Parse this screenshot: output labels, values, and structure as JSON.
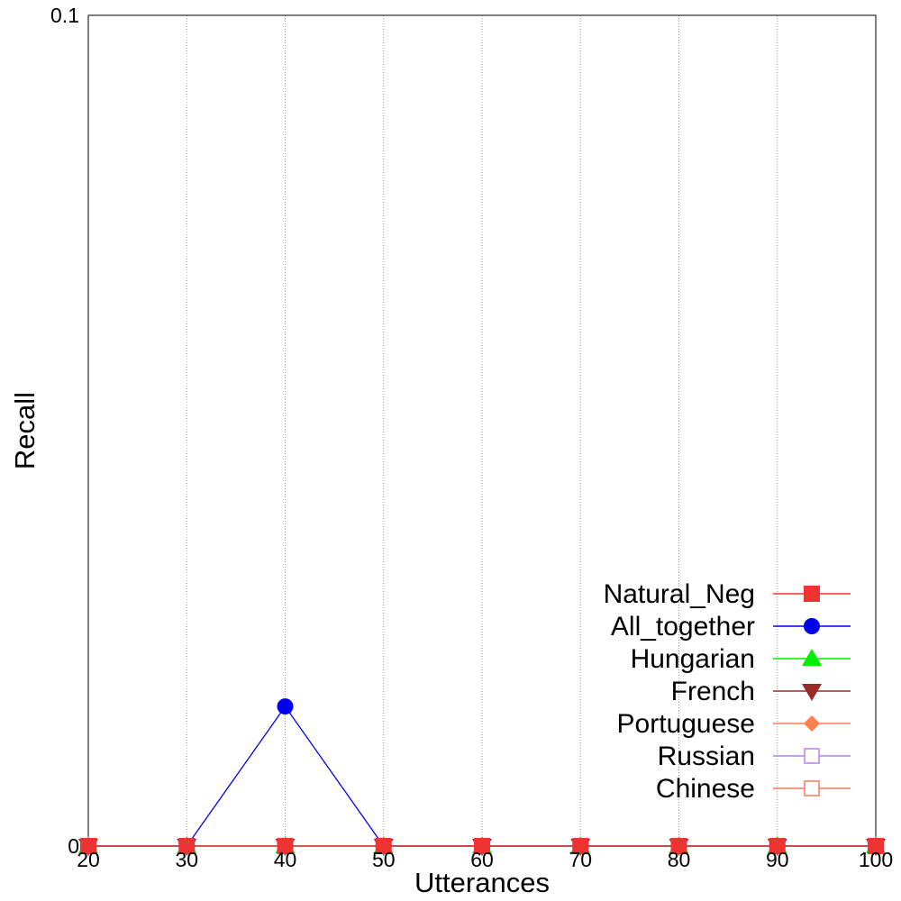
{
  "chart_data": {
    "type": "line",
    "title": "",
    "xlabel": "Utterances",
    "ylabel": "Recall",
    "x": [
      20,
      30,
      40,
      50,
      60,
      70,
      80,
      90,
      100
    ],
    "xlim": [
      20,
      100
    ],
    "ylim": [
      0,
      0.1
    ],
    "x_ticks": [
      "20",
      "30",
      "40",
      "50",
      "60",
      "70",
      "80",
      "90",
      "100"
    ],
    "y_ticks": [
      "0",
      "0.1"
    ],
    "grid": "vertical dotted",
    "legend_position": "bottom-right",
    "series": [
      {
        "name": "Natural_Neg",
        "color": "#ee3333",
        "marker": "square-filled",
        "values": [
          0,
          0,
          0,
          0,
          0,
          0,
          0,
          0,
          0
        ]
      },
      {
        "name": "All_together",
        "color": "#0000ee",
        "marker": "circle-filled",
        "values": [
          0,
          0,
          0.0168,
          0,
          0,
          0,
          0,
          0,
          0
        ]
      },
      {
        "name": "Hungarian",
        "color": "#00ee00",
        "marker": "triangle-up-filled",
        "values": [
          0,
          0,
          0,
          0,
          0,
          0,
          0,
          0,
          0
        ]
      },
      {
        "name": "French",
        "color": "#9a2a2a",
        "marker": "triangle-down-filled",
        "values": [
          0,
          0,
          0,
          0,
          0,
          0,
          0,
          0,
          0
        ]
      },
      {
        "name": "Portuguese",
        "color": "#ff7f50",
        "marker": "diamond-filled",
        "values": [
          0,
          0,
          0,
          0,
          0,
          0,
          0,
          0,
          0
        ]
      },
      {
        "name": "Russian",
        "color": "#b77ee8",
        "marker": "square-open",
        "values": [
          0,
          0,
          0,
          0,
          0,
          0,
          0,
          0,
          0
        ]
      },
      {
        "name": "Chinese",
        "color": "#f07a5a",
        "marker": "square-open",
        "values": [
          0,
          0,
          0,
          0,
          0,
          0,
          0,
          0,
          0
        ]
      }
    ]
  }
}
